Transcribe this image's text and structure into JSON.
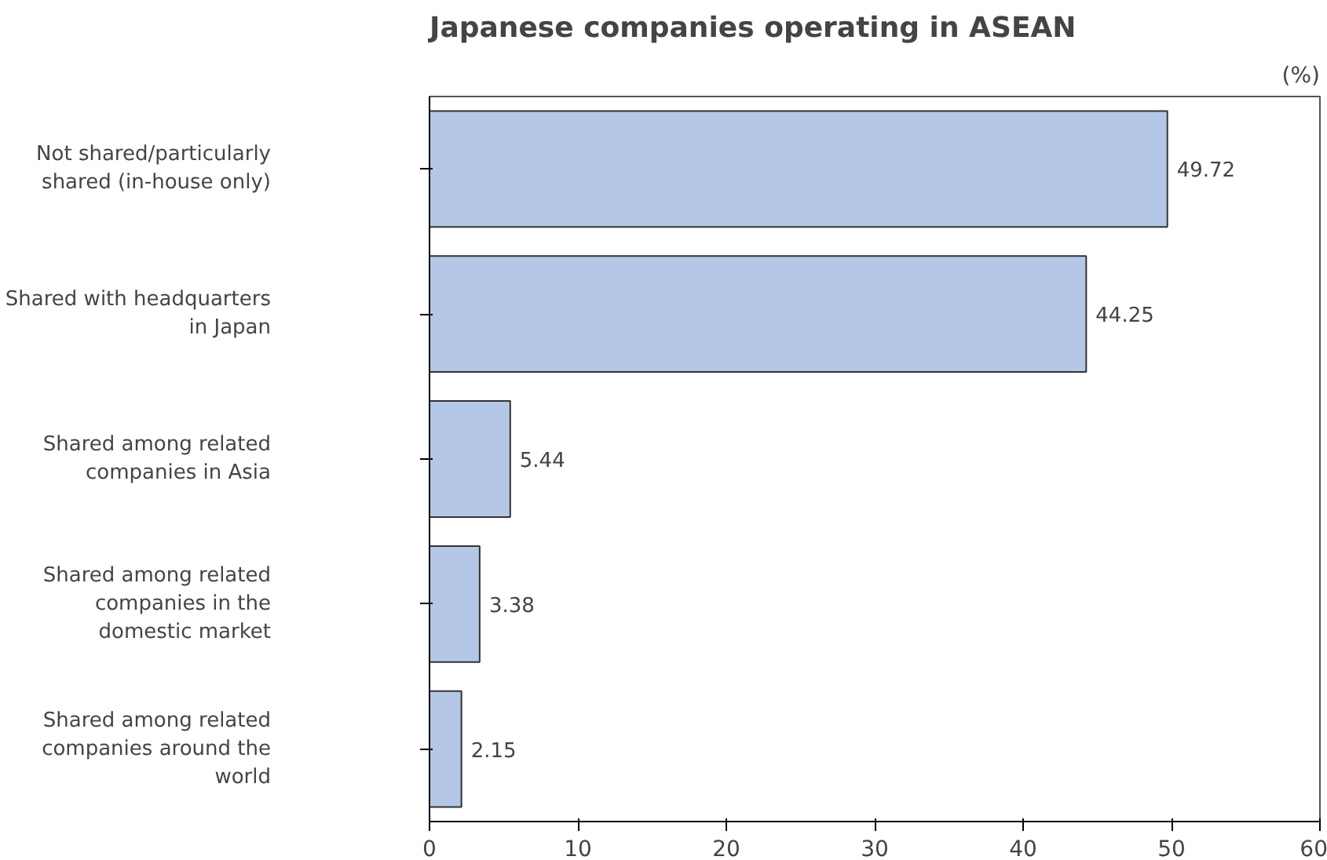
{
  "chart_data": {
    "type": "bar",
    "orientation": "horizontal",
    "title": "Japanese companies operating in ASEAN",
    "categories": [
      "Not shared/particularly shared (in-house only)",
      "Shared with headquarters in Japan",
      "Shared among related companies in Asia",
      "Shared among related companies in the domestic market",
      "Shared among related companies around the world"
    ],
    "values": [
      49.72,
      44.25,
      5.44,
      3.38,
      2.15
    ],
    "color": "#b4c7e7",
    "xlim": [
      0,
      60
    ],
    "xticks": [
      0,
      10,
      20,
      30,
      40,
      50,
      60
    ],
    "grid": false,
    "data_labels": true,
    "annotations": [
      "(%)"
    ]
  }
}
